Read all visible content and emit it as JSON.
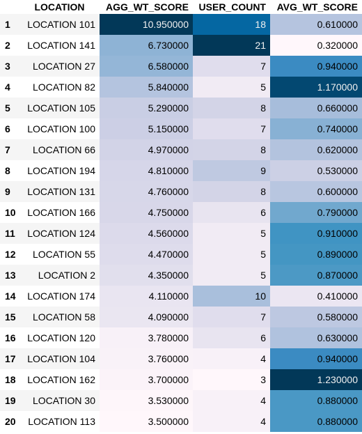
{
  "table": {
    "headers": {
      "index": "",
      "location": "LOCATION",
      "agg_wt_score": "AGG_WT_SCORE",
      "user_count": "USER_COUNT",
      "avg_wt_score": "AVG_WT_SCORE"
    },
    "rows": [
      {
        "index": "1",
        "location": "LOCATION 101",
        "agg_wt_score": "10.950000",
        "user_count": "18",
        "avg_wt_score": "0.610000",
        "agg_bg": "#023858",
        "user_bg": "#0567a2",
        "avg_bg": "#b5c4df"
      },
      {
        "index": "2",
        "location": "LOCATION 141",
        "agg_wt_score": "6.730000",
        "user_count": "21",
        "avg_wt_score": "0.320000",
        "agg_bg": "#8eb3d5",
        "user_bg": "#023858",
        "avg_bg": "#fff7fb"
      },
      {
        "index": "3",
        "location": "LOCATION 27",
        "agg_wt_score": "6.580000",
        "user_count": "7",
        "avg_wt_score": "0.940000",
        "agg_bg": "#94b6d7",
        "user_bg": "#e0dded",
        "avg_bg": "#3b8bc2"
      },
      {
        "index": "4",
        "location": "LOCATION 82",
        "agg_wt_score": "5.840000",
        "user_count": "5",
        "avg_wt_score": "1.170000",
        "agg_bg": "#b4c4df",
        "user_bg": "#f1ebf4",
        "avg_bg": "#034871"
      },
      {
        "index": "5",
        "location": "LOCATION 105",
        "agg_wt_score": "5.290000",
        "user_count": "8",
        "avg_wt_score": "0.660000",
        "agg_bg": "#c9cee4",
        "user_bg": "#d3d4e7",
        "avg_bg": "#a7bddb"
      },
      {
        "index": "6",
        "location": "LOCATION 100",
        "agg_wt_score": "5.150000",
        "user_count": "7",
        "avg_wt_score": "0.740000",
        "agg_bg": "#cccfe5",
        "user_bg": "#e0dded",
        "avg_bg": "#88b1d4"
      },
      {
        "index": "7",
        "location": "LOCATION 66",
        "agg_wt_score": "4.970000",
        "user_count": "8",
        "avg_wt_score": "0.620000",
        "agg_bg": "#d2d3e7",
        "user_bg": "#d3d4e7",
        "avg_bg": "#b3c3de"
      },
      {
        "index": "8",
        "location": "LOCATION 194",
        "agg_wt_score": "4.810000",
        "user_count": "9",
        "avg_wt_score": "0.530000",
        "agg_bg": "#d6d6e9",
        "user_bg": "#bfc9e1",
        "avg_bg": "#ccd0e5"
      },
      {
        "index": "9",
        "location": "LOCATION 131",
        "agg_wt_score": "4.760000",
        "user_count": "8",
        "avg_wt_score": "0.600000",
        "agg_bg": "#d7d7e9",
        "user_bg": "#d3d4e7",
        "avg_bg": "#b8c6e0"
      },
      {
        "index": "10",
        "location": "LOCATION 166",
        "agg_wt_score": "4.750000",
        "user_count": "6",
        "avg_wt_score": "0.790000",
        "agg_bg": "#d8d7e9",
        "user_bg": "#e8e4f0",
        "avg_bg": "#71a8ce"
      },
      {
        "index": "11",
        "location": "LOCATION 124",
        "agg_wt_score": "4.560000",
        "user_count": "5",
        "avg_wt_score": "0.910000",
        "agg_bg": "#dcdaeb",
        "user_bg": "#f1ebf4",
        "avg_bg": "#4094c3"
      },
      {
        "index": "12",
        "location": "LOCATION 55",
        "agg_wt_score": "4.470000",
        "user_count": "5",
        "avg_wt_score": "0.890000",
        "agg_bg": "#dedcec",
        "user_bg": "#f1ebf4",
        "avg_bg": "#4496c3"
      },
      {
        "index": "13",
        "location": "LOCATION 2",
        "agg_wt_score": "4.350000",
        "user_count": "5",
        "avg_wt_score": "0.870000",
        "agg_bg": "#e1dfed",
        "user_bg": "#f1ebf4",
        "avg_bg": "#4c99c5"
      },
      {
        "index": "14",
        "location": "LOCATION 174",
        "agg_wt_score": "4.110000",
        "user_count": "10",
        "avg_wt_score": "0.410000",
        "agg_bg": "#e9e5f1",
        "user_bg": "#a9bfdc",
        "avg_bg": "#ebe6f2"
      },
      {
        "index": "15",
        "location": "LOCATION 58",
        "agg_wt_score": "4.090000",
        "user_count": "7",
        "avg_wt_score": "0.580000",
        "agg_bg": "#eae6f1",
        "user_bg": "#e0dded",
        "avg_bg": "#bdc8e1"
      },
      {
        "index": "16",
        "location": "LOCATION 120",
        "agg_wt_score": "3.780000",
        "user_count": "6",
        "avg_wt_score": "0.630000",
        "agg_bg": "#f8f1f8",
        "user_bg": "#e8e4f0",
        "avg_bg": "#b0c2de"
      },
      {
        "index": "17",
        "location": "LOCATION 104",
        "agg_wt_score": "3.760000",
        "user_count": "4",
        "avg_wt_score": "0.940000",
        "agg_bg": "#f9f2f8",
        "user_bg": "#f8f1f8",
        "avg_bg": "#3b8bc2"
      },
      {
        "index": "18",
        "location": "LOCATION 162",
        "agg_wt_score": "3.700000",
        "user_count": "3",
        "avg_wt_score": "1.230000",
        "agg_bg": "#fbf3f9",
        "user_bg": "#fff7fb",
        "avg_bg": "#023858"
      },
      {
        "index": "19",
        "location": "LOCATION 30",
        "agg_wt_score": "3.530000",
        "user_count": "4",
        "avg_wt_score": "0.880000",
        "agg_bg": "#fef6fa",
        "user_bg": "#f8f1f8",
        "avg_bg": "#4a98c5"
      },
      {
        "index": "20",
        "location": "LOCATION 113",
        "agg_wt_score": "3.500000",
        "user_count": "4",
        "avg_wt_score": "0.880000",
        "agg_bg": "#fff7fb",
        "user_bg": "#f8f1f8",
        "avg_bg": "#4a98c5"
      }
    ]
  }
}
